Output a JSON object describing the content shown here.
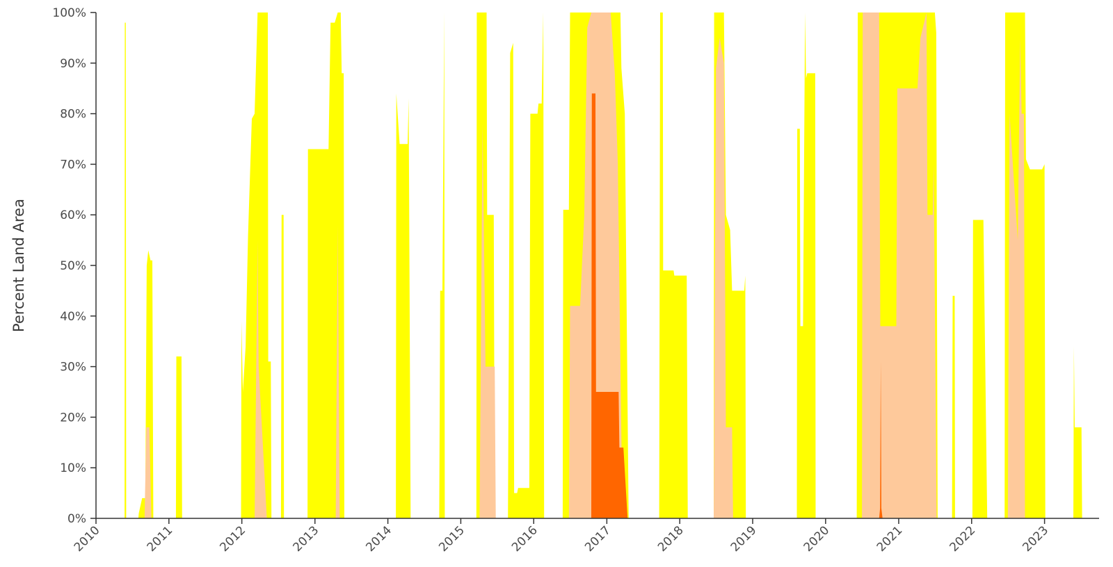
{
  "chart_data": {
    "type": "area",
    "title": "",
    "xlabel": "",
    "ylabel": "Percent Land Area",
    "xlim": [
      "2010-01-01",
      "2023-10-01"
    ],
    "ylim": [
      0,
      100
    ],
    "y_ticks": [
      "0%",
      "10%",
      "20%",
      "30%",
      "40%",
      "50%",
      "60%",
      "70%",
      "80%",
      "90%",
      "100%"
    ],
    "x_ticks": [
      "2010",
      "2011",
      "2012",
      "2013",
      "2014",
      "2015",
      "2016",
      "2017",
      "2018",
      "2019",
      "2020",
      "2021",
      "2022",
      "2023"
    ],
    "grid": false,
    "legend": "none",
    "stacked_overlay": true,
    "series": [
      {
        "color": "#ffff00",
        "points": [
          [
            "2010-05-24",
            0
          ],
          [
            "2010-05-25",
            98
          ],
          [
            "2010-05-30",
            98
          ],
          [
            "2010-06-01",
            0
          ],
          [
            "2010-08-01",
            0
          ],
          [
            "2010-08-03",
            1
          ],
          [
            "2010-08-20",
            4
          ],
          [
            "2010-09-05",
            4
          ],
          [
            "2010-09-12",
            50
          ],
          [
            "2010-09-20",
            53
          ],
          [
            "2010-10-01",
            51
          ],
          [
            "2010-10-10",
            51
          ],
          [
            "2010-10-15",
            0
          ],
          [
            "2011-02-05",
            0
          ],
          [
            "2011-02-07",
            32
          ],
          [
            "2011-03-05",
            32
          ],
          [
            "2011-03-08",
            0
          ],
          [
            "2011-12-28",
            0
          ],
          [
            "2011-12-30",
            39
          ],
          [
            "2012-01-06",
            25
          ],
          [
            "2012-01-20",
            34
          ],
          [
            "2012-02-01",
            56
          ],
          [
            "2012-02-20",
            79
          ],
          [
            "2012-03-05",
            80
          ],
          [
            "2012-03-20",
            100
          ],
          [
            "2012-05-10",
            100
          ],
          [
            "2012-05-12",
            31
          ],
          [
            "2012-05-25",
            31
          ],
          [
            "2012-05-28",
            0
          ],
          [
            "2012-07-15",
            0
          ],
          [
            "2012-07-18",
            60
          ],
          [
            "2012-07-28",
            60
          ],
          [
            "2012-07-30",
            0
          ],
          [
            "2012-11-25",
            0
          ],
          [
            "2012-11-27",
            73
          ],
          [
            "2013-03-10",
            73
          ],
          [
            "2013-03-20",
            98
          ],
          [
            "2013-04-10",
            98
          ],
          [
            "2013-04-25",
            100
          ],
          [
            "2013-05-10",
            100
          ],
          [
            "2013-05-15",
            88
          ],
          [
            "2013-05-25",
            88
          ],
          [
            "2013-05-28",
            0
          ],
          [
            "2014-02-10",
            0
          ],
          [
            "2014-02-12",
            84
          ],
          [
            "2014-03-01",
            74
          ],
          [
            "2014-04-10",
            74
          ],
          [
            "2014-04-15",
            83
          ],
          [
            "2014-04-25",
            0
          ],
          [
            "2014-09-15",
            0
          ],
          [
            "2014-09-20",
            45
          ],
          [
            "2014-10-01",
            45
          ],
          [
            "2014-10-10",
            100
          ],
          [
            "2014-10-13",
            0
          ],
          [
            "2015-03-20",
            0
          ],
          [
            "2015-03-22",
            100
          ],
          [
            "2015-05-10",
            100
          ],
          [
            "2015-05-13",
            60
          ],
          [
            "2015-06-15",
            60
          ],
          [
            "2015-06-20",
            0
          ],
          [
            "2015-08-25",
            0
          ],
          [
            "2015-09-05",
            92
          ],
          [
            "2015-09-20",
            94
          ],
          [
            "2015-09-25",
            5
          ],
          [
            "2015-10-10",
            5
          ],
          [
            "2015-10-15",
            6
          ],
          [
            "2015-12-10",
            6
          ],
          [
            "2015-12-15",
            80
          ],
          [
            "2016-01-20",
            80
          ],
          [
            "2016-01-25",
            82
          ],
          [
            "2016-02-10",
            82
          ],
          [
            "2016-02-18",
            100
          ],
          [
            "2016-02-22",
            0
          ],
          [
            "2016-05-25",
            0
          ],
          [
            "2016-05-28",
            61
          ],
          [
            "2016-06-25",
            61
          ],
          [
            "2016-07-01",
            100
          ],
          [
            "2017-03-10",
            100
          ],
          [
            "2017-03-15",
            89
          ],
          [
            "2017-04-01",
            80
          ],
          [
            "2017-04-20",
            0
          ],
          [
            "2017-09-20",
            0
          ],
          [
            "2017-09-25",
            100
          ],
          [
            "2017-10-08",
            100
          ],
          [
            "2017-10-10",
            49
          ],
          [
            "2017-12-01",
            49
          ],
          [
            "2017-12-05",
            48
          ],
          [
            "2018-02-05",
            48
          ],
          [
            "2018-02-10",
            0
          ],
          [
            "2018-06-20",
            0
          ],
          [
            "2018-06-22",
            100
          ],
          [
            "2018-08-10",
            100
          ],
          [
            "2018-08-20",
            60
          ],
          [
            "2018-09-10",
            57
          ],
          [
            "2018-09-20",
            45
          ],
          [
            "2018-11-20",
            45
          ],
          [
            "2018-11-25",
            48
          ],
          [
            "2018-11-28",
            0
          ],
          [
            "2019-08-10",
            0
          ],
          [
            "2019-08-12",
            77
          ],
          [
            "2019-08-25",
            77
          ],
          [
            "2019-08-28",
            38
          ],
          [
            "2019-09-10",
            38
          ],
          [
            "2019-09-20",
            100
          ],
          [
            "2019-09-25",
            87
          ],
          [
            "2019-10-01",
            88
          ],
          [
            "2019-11-10",
            88
          ],
          [
            "2019-11-12",
            0
          ],
          [
            "2020-06-05",
            0
          ],
          [
            "2020-06-10",
            100
          ],
          [
            "2021-07-01",
            100
          ],
          [
            "2021-07-08",
            96
          ],
          [
            "2021-07-15",
            0
          ],
          [
            "2021-09-25",
            0
          ],
          [
            "2021-09-28",
            44
          ],
          [
            "2021-10-08",
            44
          ],
          [
            "2021-10-10",
            0
          ],
          [
            "2022-01-05",
            0
          ],
          [
            "2022-01-08",
            59
          ],
          [
            "2022-03-01",
            59
          ],
          [
            "2022-03-20",
            0
          ],
          [
            "2022-06-15",
            0
          ],
          [
            "2022-06-18",
            100
          ],
          [
            "2022-09-25",
            100
          ],
          [
            "2022-09-30",
            71
          ],
          [
            "2022-10-20",
            69
          ],
          [
            "2022-12-20",
            69
          ],
          [
            "2023-01-01",
            70
          ],
          [
            "2023-01-05",
            0
          ],
          [
            "2023-05-25",
            0
          ],
          [
            "2023-05-28",
            34
          ],
          [
            "2023-06-01",
            18
          ],
          [
            "2023-07-05",
            18
          ],
          [
            "2023-07-08",
            0
          ]
        ]
      },
      {
        "color": "#fec99b",
        "points": [
          [
            "2010-09-01",
            0
          ],
          [
            "2010-09-10",
            18
          ],
          [
            "2010-09-25",
            18
          ],
          [
            "2010-10-05",
            0
          ],
          [
            "2012-03-05",
            0
          ],
          [
            "2012-03-20",
            55
          ],
          [
            "2012-03-25",
            30
          ],
          [
            "2012-05-05",
            0
          ],
          [
            "2013-04-15",
            0
          ],
          [
            "2013-04-25",
            58
          ],
          [
            "2013-05-05",
            0
          ],
          [
            "2015-04-05",
            0
          ],
          [
            "2015-04-20",
            78
          ],
          [
            "2015-05-05",
            30
          ],
          [
            "2015-06-20",
            30
          ],
          [
            "2015-06-25",
            0
          ],
          [
            "2016-06-25",
            0
          ],
          [
            "2016-07-01",
            42
          ],
          [
            "2016-08-20",
            42
          ],
          [
            "2016-09-10",
            60
          ],
          [
            "2016-09-25",
            97
          ],
          [
            "2016-10-15",
            100
          ],
          [
            "2017-01-20",
            100
          ],
          [
            "2017-02-10",
            88
          ],
          [
            "2017-02-25",
            70
          ],
          [
            "2017-03-20",
            0
          ],
          [
            "2018-06-20",
            0
          ],
          [
            "2018-07-01",
            89
          ],
          [
            "2018-07-20",
            95
          ],
          [
            "2018-08-10",
            90
          ],
          [
            "2018-08-20",
            18
          ],
          [
            "2018-09-20",
            18
          ],
          [
            "2018-09-25",
            0
          ],
          [
            "2020-07-01",
            0
          ],
          [
            "2020-07-05",
            100
          ],
          [
            "2020-09-25",
            100
          ],
          [
            "2020-10-01",
            38
          ],
          [
            "2020-12-20",
            38
          ],
          [
            "2020-12-25",
            85
          ],
          [
            "2021-04-05",
            85
          ],
          [
            "2021-04-20",
            95
          ],
          [
            "2021-05-20",
            100
          ],
          [
            "2021-05-25",
            60
          ],
          [
            "2021-06-20",
            60
          ],
          [
            "2021-06-25",
            70
          ],
          [
            "2021-07-10",
            0
          ],
          [
            "2022-07-01",
            0
          ],
          [
            "2022-07-10",
            80
          ],
          [
            "2022-08-20",
            55
          ],
          [
            "2022-09-01",
            95
          ],
          [
            "2022-09-08",
            80
          ],
          [
            "2022-09-20",
            80
          ],
          [
            "2022-09-25",
            0
          ]
        ]
      },
      {
        "color": "#ff6600",
        "points": [
          [
            "2016-10-15",
            0
          ],
          [
            "2016-10-18",
            84
          ],
          [
            "2016-11-05",
            84
          ],
          [
            "2016-11-08",
            25
          ],
          [
            "2017-03-01",
            25
          ],
          [
            "2017-03-05",
            14
          ],
          [
            "2017-03-25",
            14
          ],
          [
            "2017-04-15",
            0
          ],
          [
            "2020-09-25",
            0
          ],
          [
            "2020-09-30",
            2
          ],
          [
            "2020-10-03",
            31
          ],
          [
            "2020-10-06",
            2
          ],
          [
            "2020-10-12",
            0
          ]
        ]
      }
    ]
  }
}
